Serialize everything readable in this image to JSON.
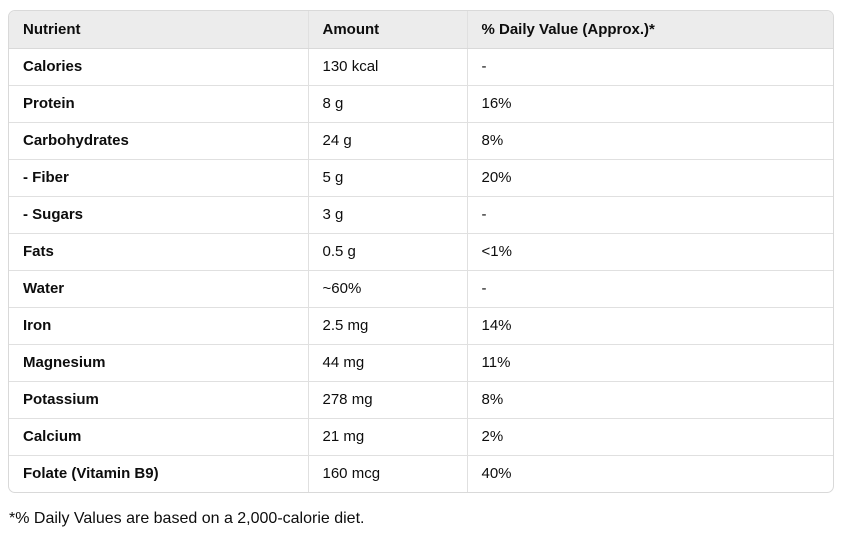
{
  "table": {
    "headers": [
      "Nutrient",
      "Amount",
      "% Daily Value (Approx.)*"
    ],
    "rows": [
      {
        "nutrient": "Calories",
        "amount": "130 kcal",
        "dv": "-"
      },
      {
        "nutrient": "Protein",
        "amount": "8 g",
        "dv": "16%"
      },
      {
        "nutrient": "Carbohydrates",
        "amount": "24 g",
        "dv": "8%"
      },
      {
        "nutrient": "- Fiber",
        "amount": "5 g",
        "dv": "20%"
      },
      {
        "nutrient": "- Sugars",
        "amount": "3 g",
        "dv": "-"
      },
      {
        "nutrient": "Fats",
        "amount": "0.5 g",
        "dv": "<1%"
      },
      {
        "nutrient": "Water",
        "amount": "~60%",
        "dv": "-"
      },
      {
        "nutrient": "Iron",
        "amount": "2.5 mg",
        "dv": "14%"
      },
      {
        "nutrient": "Magnesium",
        "amount": "44 mg",
        "dv": "11%"
      },
      {
        "nutrient": "Potassium",
        "amount": "278 mg",
        "dv": "8%"
      },
      {
        "nutrient": "Calcium",
        "amount": "21 mg",
        "dv": "2%"
      },
      {
        "nutrient": "Folate (Vitamin B9)",
        "amount": "160 mcg",
        "dv": "40%"
      }
    ]
  },
  "footnote": "*% Daily Values are based on a 2,000-calorie diet."
}
